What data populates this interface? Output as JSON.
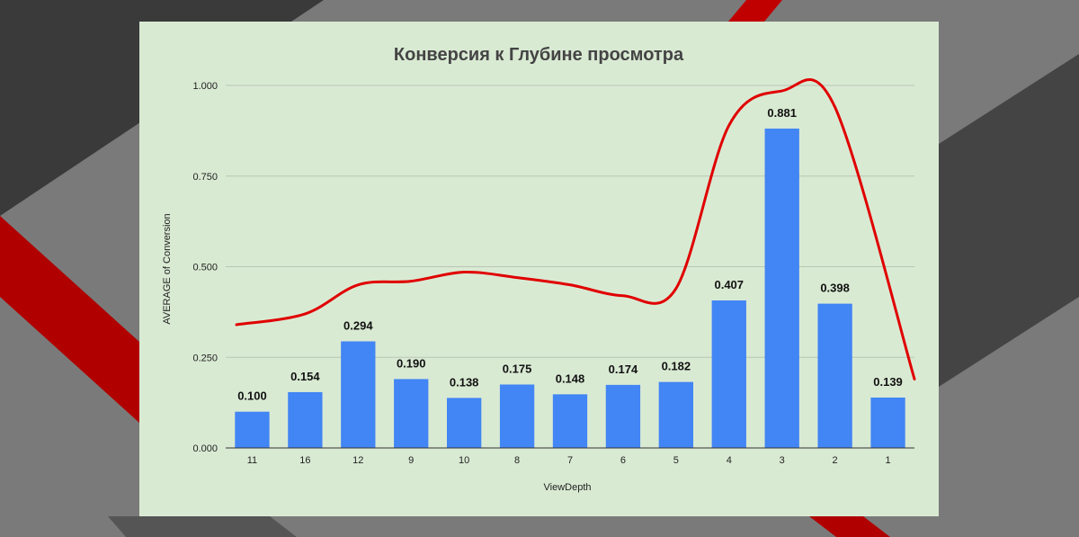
{
  "chart_data": {
    "type": "bar",
    "title": "Конверсия к Глубине просмотра",
    "xlabel": "ViewDepth",
    "ylabel": "AVERAGE of Conversion",
    "categories": [
      "11",
      "16",
      "12",
      "9",
      "10",
      "8",
      "7",
      "6",
      "5",
      "4",
      "3",
      "2",
      "1"
    ],
    "values": [
      0.1,
      0.154,
      0.294,
      0.19,
      0.138,
      0.175,
      0.148,
      0.174,
      0.182,
      0.407,
      0.881,
      0.398,
      0.139
    ],
    "value_labels": [
      "0.100",
      "0.154",
      "0.294",
      "0.190",
      "0.138",
      "0.175",
      "0.148",
      "0.174",
      "0.182",
      "0.407",
      "0.881",
      "0.398",
      "0.139"
    ],
    "ylim": [
      0,
      1
    ],
    "yticks": [
      0,
      0.25,
      0.5,
      0.75,
      1.0
    ],
    "ytick_labels": [
      "0.000",
      "0.250",
      "0.500",
      "0.750",
      "1.000"
    ],
    "grid": true,
    "legend": "none",
    "bar_color": "#4285f4",
    "annotation": {
      "type": "hand-drawn trend line",
      "color": "#e00000",
      "values": [
        0.34,
        0.37,
        0.45,
        0.46,
        0.485,
        0.47,
        0.45,
        0.42,
        0.44,
        0.89,
        0.985,
        0.94,
        0.19
      ]
    }
  },
  "colors": {
    "panel_background": "#d9ead3",
    "page_background": "#7a7a7a",
    "accent_red": "#cc0000"
  }
}
